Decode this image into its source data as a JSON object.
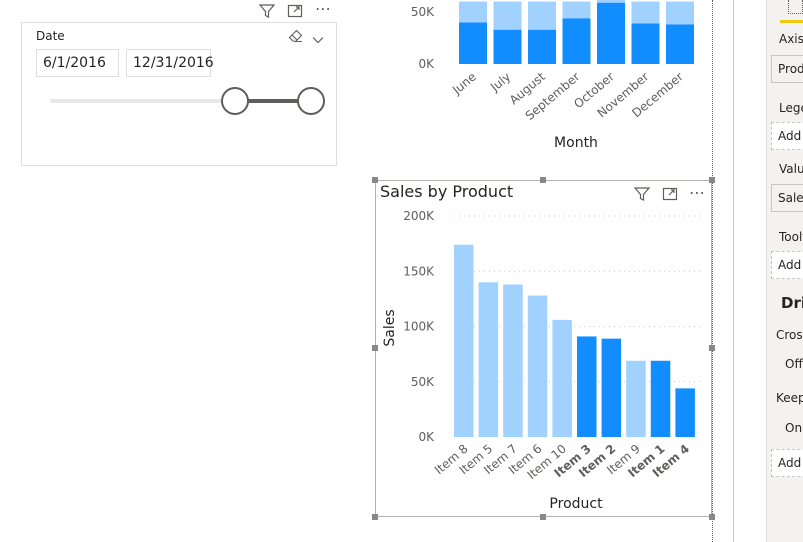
{
  "date_slicer": {
    "title": "Date",
    "start_date": "6/1/2016",
    "end_date": "12/31/2016",
    "icons": [
      "filter-icon",
      "focus-mode-icon",
      "more-options-icon",
      "eraser-icon",
      "chevron-down-icon"
    ]
  },
  "chart_data": [
    {
      "type": "bar",
      "stacked": true,
      "xlabel": "Month",
      "categories": [
        "June",
        "July",
        "August",
        "September",
        "October",
        "November",
        "December"
      ],
      "series": [
        {
          "values": [
            40000,
            33000,
            33000,
            44000,
            59000,
            39000,
            38000
          ]
        },
        {
          "values": [
            20000,
            27000,
            27000,
            16000,
            3000,
            21000,
            22000
          ]
        }
      ],
      "yticks": [
        "0K",
        "50K"
      ],
      "colors": [
        "#118dff",
        "#a0d1ff"
      ],
      "note": "Chart is scrolled; only the bottom portion is visible."
    },
    {
      "type": "bar",
      "title": "Sales by Product",
      "xlabel": "Product",
      "ylabel": "Sales",
      "ylim": [
        0,
        200000
      ],
      "yticks": [
        "0K",
        "50K",
        "100K",
        "150K",
        "200K"
      ],
      "categories": [
        "Item 8",
        "Item 5",
        "Item 7",
        "Item 6",
        "Item 10",
        "Item 3",
        "Item 2",
        "Item 9",
        "Item 1",
        "Item 4"
      ],
      "values": [
        174000,
        140000,
        138000,
        128000,
        106000,
        91000,
        89000,
        69000,
        69000,
        44000
      ],
      "highlighted": [
        false,
        false,
        false,
        false,
        false,
        true,
        true,
        false,
        true,
        true
      ],
      "colors": {
        "highlighted": "#118dff",
        "dimmed": "#a0d1ff"
      }
    }
  ],
  "fields_pane": {
    "labels": [
      "Axis",
      "Lege",
      "Valu",
      "Toolt"
    ],
    "axis_value": "Prod",
    "values_value": "Sales",
    "add_text": "Add",
    "drillthrough_header": "Dri",
    "cross_report_label": "Cross",
    "cross_report_value": "Off",
    "keep_filters_label": "Keep",
    "keep_filters_value": "On"
  }
}
